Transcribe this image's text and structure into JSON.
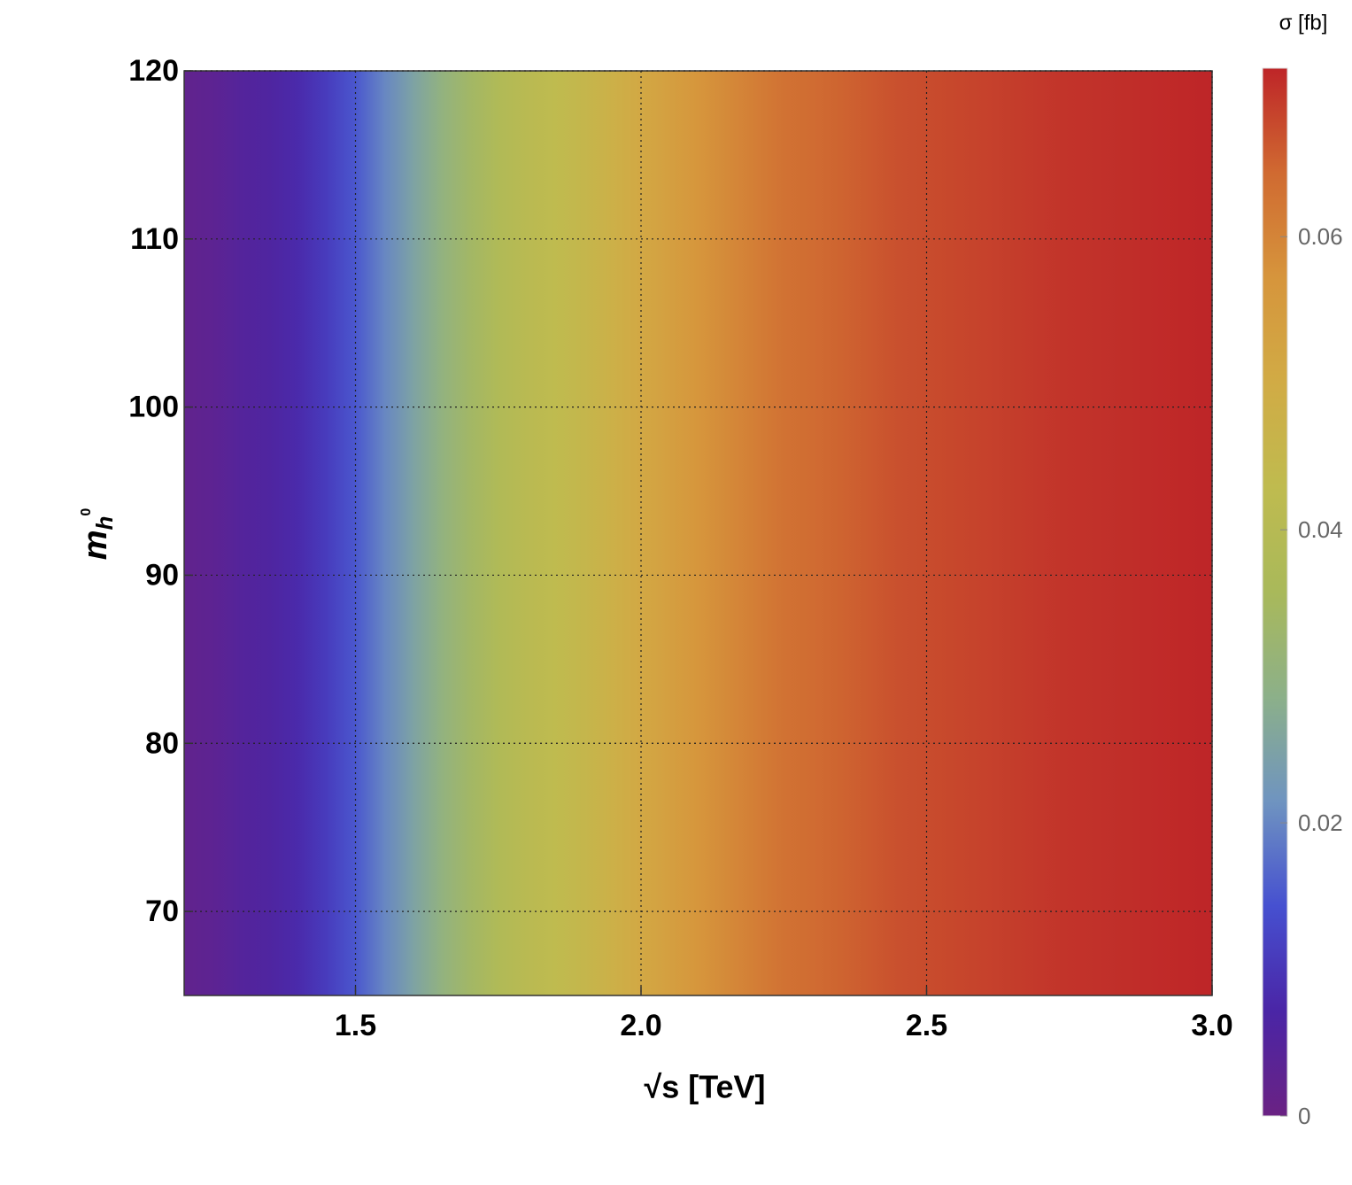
{
  "chart_data": {
    "type": "heatmap",
    "x_label": "√s [TeV]",
    "y_label": {
      "base": "m",
      "sub": "h",
      "sup": "0"
    },
    "colorbar_label": "σ [fb]",
    "xlim": [
      1.2,
      3.0
    ],
    "ylim": [
      65,
      120
    ],
    "xticks": [
      1.5,
      {
        "value": 2,
        "label": "2.0"
      },
      2.5,
      {
        "value": 3,
        "label": "3.0"
      }
    ],
    "yticks": [
      70,
      80,
      90,
      100,
      110,
      120
    ],
    "grid": true,
    "x": [
      1.2,
      1.25,
      1.3,
      1.35,
      1.4,
      1.45,
      1.5,
      1.55,
      1.6,
      1.65,
      1.7,
      1.75,
      1.8,
      1.85,
      1.9,
      1.95,
      2.0,
      2.05,
      2.1,
      2.15,
      2.2,
      2.25,
      2.3,
      2.35,
      2.4,
      2.45,
      2.5,
      2.55,
      2.6,
      2.65,
      2.7,
      2.75,
      2.8,
      2.85,
      2.9,
      2.95,
      3.0
    ],
    "values": [
      0.002,
      0.003,
      0.005,
      0.006,
      0.008,
      0.011,
      0.015,
      0.02,
      0.025,
      0.03,
      0.034,
      0.038,
      0.041,
      0.043,
      0.045,
      0.048,
      0.051,
      0.054,
      0.057,
      0.059,
      0.061,
      0.063,
      0.064,
      0.065,
      0.066,
      0.067,
      0.0675,
      0.068,
      0.0685,
      0.069,
      0.0695,
      0.07,
      0.0703,
      0.0706,
      0.0709,
      0.0712,
      0.0715
    ],
    "colorbar_lim": [
      0,
      0.0715
    ],
    "colorbar_ticks": [
      0,
      0.02,
      0.04,
      0.06
    ],
    "colormap": [
      "#6a2283",
      "#4a25a6",
      "#4650d0",
      "#6f94c0",
      "#8cb089",
      "#a9b95a",
      "#bfbb4f",
      "#d1ab45",
      "#d6953c",
      "#d06a31",
      "#be2528"
    ]
  }
}
